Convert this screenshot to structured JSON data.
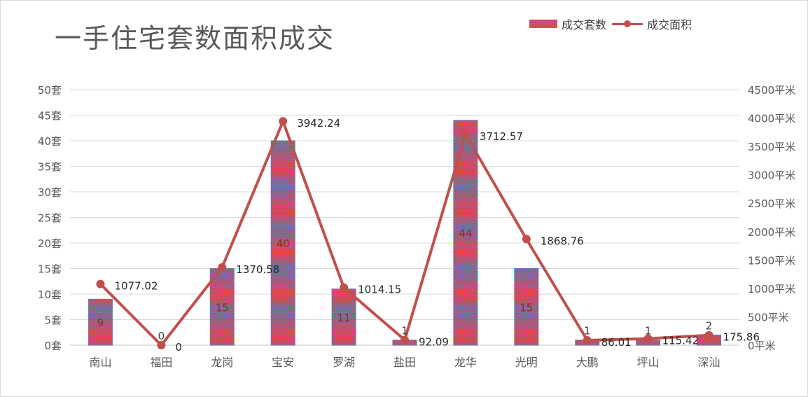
{
  "title": "一手住宅套数面积成交",
  "legend": {
    "bar_label": "成交套数",
    "line_label": "成交面积"
  },
  "colors": {
    "bar_red": "#d9434f",
    "bar_purple": "#7a72a6",
    "line": "#c0504d",
    "grid": "#d9d9d9",
    "axis_text": "#595959"
  },
  "chart_data": {
    "type": "bar",
    "title": "一手住宅套数面积成交",
    "categories": [
      "南山",
      "福田",
      "龙岗",
      "宝安",
      "罗湖",
      "盐田",
      "龙华",
      "光明",
      "大鹏",
      "坪山",
      "深汕"
    ],
    "series": [
      {
        "name": "成交套数",
        "type": "bar",
        "axis": "left",
        "values": [
          9,
          0,
          15,
          40,
          11,
          1,
          44,
          15,
          1,
          1,
          2
        ],
        "labels": [
          "9",
          "0",
          "15",
          "40",
          "11",
          "1",
          "44",
          "15",
          "1",
          "1",
          "2"
        ]
      },
      {
        "name": "成交面积",
        "type": "line",
        "axis": "right",
        "values": [
          1077.02,
          0,
          1370.58,
          3942.24,
          1014.15,
          92.09,
          3712.57,
          1868.76,
          86.01,
          115.42,
          175.86
        ],
        "labels": [
          "1077.02",
          "0",
          "1370.58",
          "3942.24",
          "1014.15",
          "92.09",
          "3712.57",
          "1868.76",
          "86.01",
          "115.42",
          "175.86"
        ]
      }
    ],
    "y_left": {
      "ylim": [
        0,
        50
      ],
      "ticks": [
        0,
        5,
        10,
        15,
        20,
        25,
        30,
        35,
        40,
        45,
        50
      ],
      "tick_labels": [
        "0套",
        "5套",
        "10套",
        "15套",
        "20套",
        "25套",
        "30套",
        "35套",
        "40套",
        "45套",
        "50套"
      ]
    },
    "y_right": {
      "ylim": [
        0,
        4500
      ],
      "ticks": [
        0,
        500,
        1000,
        1500,
        2000,
        2500,
        3000,
        3500,
        4000,
        4500
      ],
      "tick_labels": [
        "0平米",
        "500平米",
        "1000平米",
        "1500平米",
        "2000平米",
        "2500平米",
        "3000平米",
        "3500平米",
        "4000平米",
        "4500平米"
      ]
    },
    "grid": true,
    "legend_position": "top-right"
  }
}
